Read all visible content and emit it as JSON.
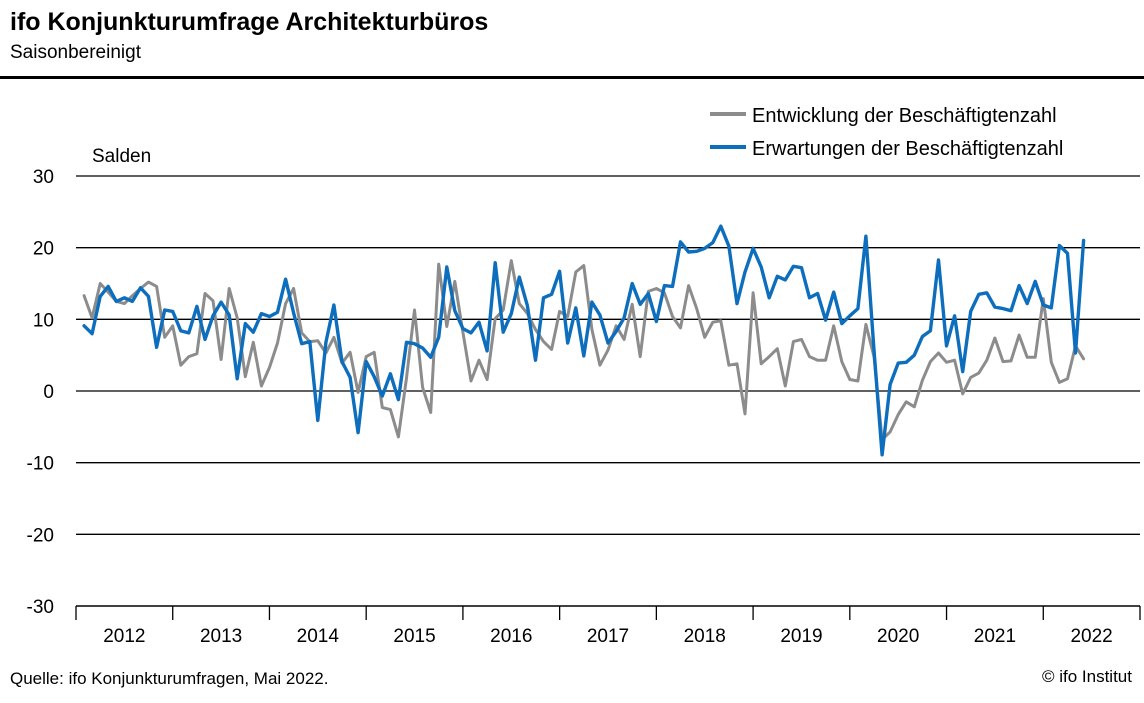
{
  "header": {
    "title": "ifo Konjunkturumfrage Architekturbüros",
    "subtitle": "Saisonbereinigt"
  },
  "footer": {
    "source": "Quelle: ifo Konjunkturumfragen, Mai 2022.",
    "copyright": "© ifo Institut"
  },
  "chart_data": {
    "type": "line",
    "ylabel": "Salden",
    "ylim": [
      -30,
      30
    ],
    "yticks": [
      30,
      20,
      10,
      0,
      -10,
      -20,
      -30
    ],
    "x_start": "2011-12",
    "x_end": "2022-12",
    "year_labels": [
      "2012",
      "2013",
      "2014",
      "2015",
      "2016",
      "2017",
      "2018",
      "2019",
      "2020",
      "2021",
      "2022"
    ],
    "grid": true,
    "legend_position": "top-right",
    "series": [
      {
        "name": "Entwicklung der Beschäftigtenzahl",
        "color": "#8c8c8c",
        "start": "2012-01",
        "values": [
          13.3,
          10.2,
          15.0,
          13.8,
          12.5,
          12.2,
          13.3,
          14.3,
          15.2,
          14.6,
          7.5,
          9.1,
          3.6,
          4.8,
          5.2,
          13.6,
          12.6,
          4.4,
          14.3,
          10.2,
          2.0,
          6.8,
          0.7,
          3.3,
          6.7,
          12.2,
          14.3,
          8.1,
          6.9,
          7.0,
          5.3,
          7.5,
          3.9,
          5.4,
          -0.2,
          4.8,
          5.4,
          -2.3,
          -2.6,
          -6.4,
          1.8,
          11.3,
          0.5,
          -3.0,
          17.7,
          9.0,
          15.3,
          8.2,
          1.4,
          4.3,
          1.6,
          10.1,
          11.3,
          18.2,
          12.2,
          10.8,
          8.6,
          6.9,
          5.8,
          11.1,
          10.4,
          16.6,
          17.5,
          8.6,
          3.6,
          5.7,
          9.1,
          7.2,
          12.1,
          4.8,
          13.9,
          14.3,
          13.7,
          10.4,
          8.8,
          14.7,
          11.5,
          7.5,
          9.6,
          9.8,
          3.6,
          3.8,
          -3.2,
          13.7,
          3.8,
          4.8,
          5.9,
          0.7,
          6.9,
          7.2,
          4.8,
          4.3,
          4.3,
          9.1,
          4.1,
          1.6,
          1.4,
          9.3,
          4.8,
          -6.8,
          -5.7,
          -3.3,
          -1.5,
          -2.2,
          1.5,
          4.1,
          5.3,
          4.0,
          4.3,
          -0.4,
          1.9,
          2.5,
          4.3,
          7.4,
          4.1,
          4.2,
          7.8,
          4.7,
          4.7,
          12.9,
          4.0,
          1.2,
          1.7,
          6.3,
          4.5
        ]
      },
      {
        "name": "Erwartungen der Beschäftigtenzahl",
        "color": "#0d6ebd",
        "start": "2012-01",
        "values": [
          9.1,
          8.0,
          13.2,
          14.6,
          12.5,
          13.0,
          12.5,
          14.4,
          13.2,
          6.1,
          11.3,
          11.1,
          8.4,
          8.1,
          11.8,
          7.2,
          10.5,
          12.4,
          10.6,
          1.7,
          9.4,
          8.2,
          10.8,
          10.4,
          11.0,
          15.6,
          10.9,
          6.6,
          6.9,
          -4.1,
          6.8,
          12.0,
          4.1,
          1.9,
          -5.8,
          4.1,
          2.0,
          -0.7,
          2.4,
          -1.2,
          6.8,
          6.6,
          6.0,
          4.7,
          7.5,
          17.3,
          11.2,
          8.7,
          8.1,
          9.6,
          5.6,
          17.9,
          8.2,
          10.8,
          15.9,
          11.9,
          4.3,
          13.0,
          13.5,
          16.7,
          6.7,
          11.6,
          4.9,
          12.4,
          10.6,
          6.7,
          8.3,
          10.2,
          15.0,
          12.1,
          13.6,
          9.7,
          14.7,
          14.6,
          20.8,
          19.4,
          19.5,
          19.9,
          20.7,
          23.0,
          20.2,
          12.2,
          16.6,
          19.9,
          17.3,
          13.0,
          16.0,
          15.5,
          17.4,
          17.2,
          13.0,
          13.6,
          9.9,
          13.8,
          9.4,
          10.5,
          11.5,
          21.6,
          5.7,
          -8.9,
          0.9,
          3.9,
          4.0,
          5.0,
          7.6,
          8.4,
          18.3,
          6.3,
          10.5,
          2.7,
          11.1,
          13.5,
          13.7,
          11.7,
          11.5,
          11.2,
          14.7,
          12.2,
          15.3,
          12.0,
          11.6,
          20.3,
          19.2,
          5.3,
          21.0
        ]
      }
    ]
  }
}
